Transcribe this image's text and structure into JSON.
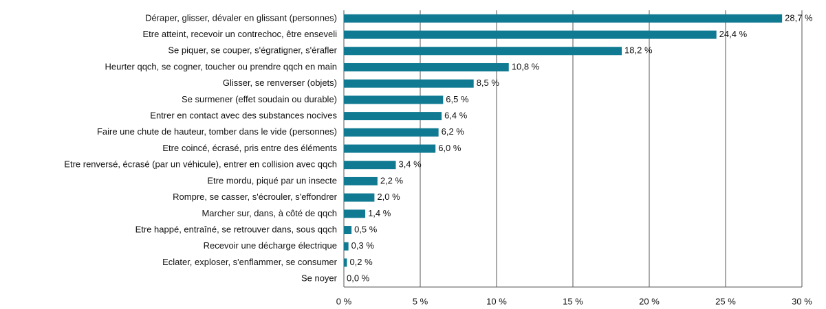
{
  "chart_data": {
    "type": "barh",
    "categories": [
      "Déraper, glisser, dévaler en glissant (personnes)",
      "Etre atteint, recevoir un contrechoc, être enseveli",
      "Se piquer, se couper, s'égratigner, s'érafler",
      "Heurter qqch, se cogner, toucher ou prendre qqch en main",
      "Glisser, se renverser (objets)",
      "Se surmener (effet soudain ou durable)",
      "Entrer en contact avec des substances nocives",
      "Faire une chute de hauteur, tomber dans le vide (personnes)",
      "Etre coincé, écrasé, pris entre des éléments",
      "Etre renversé, écrasé (par un véhicule), entrer en collision avec qqch",
      "Etre mordu, piqué par un insecte",
      "Rompre, se casser, s'écrouler, s'effondrer",
      "Marcher sur, dans, à côté de qqch",
      "Etre happé, entraîné, se retrouver dans, sous qqch",
      "Recevoir une décharge électrique",
      "Eclater, exploser, s'enflammer, se consumer",
      "Se noyer"
    ],
    "values": [
      28.7,
      24.4,
      18.2,
      10.8,
      8.5,
      6.5,
      6.4,
      6.2,
      6.0,
      3.4,
      2.2,
      2.0,
      1.4,
      0.5,
      0.3,
      0.2,
      0.0
    ],
    "value_labels": [
      "28,7 %",
      "24,4 %",
      "18,2 %",
      "10,8 %",
      "8,5 %",
      "6,5 %",
      "6,4 %",
      "6,2 %",
      "6,0 %",
      "3,4 %",
      "2,2 %",
      "2,0 %",
      "1,4 %",
      "0,5 %",
      "0,3 %",
      "0,2 %",
      "0,0 %"
    ],
    "color": "#0f7a92",
    "xlim": [
      0,
      30
    ],
    "xticks": [
      {
        "value": 0,
        "label": "0 %"
      },
      {
        "value": 5,
        "label": "5 %"
      },
      {
        "value": 10,
        "label": "10 %"
      },
      {
        "value": 15,
        "label": "15 %"
      },
      {
        "value": 20,
        "label": "20 %"
      },
      {
        "value": 25,
        "label": "25 %"
      },
      {
        "value": 30,
        "label": "30 %"
      }
    ],
    "grid": true
  }
}
